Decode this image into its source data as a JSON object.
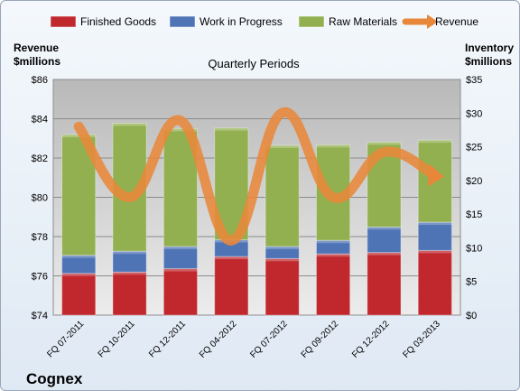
{
  "company": "Cognex",
  "chart_data": {
    "type": "bar",
    "subtitle": "Quarterly Periods",
    "left_axis_label": [
      "Revenue",
      "$millions"
    ],
    "right_axis_label": [
      "Inventory",
      "$millions"
    ],
    "categories": [
      "FQ 07-2011",
      "FQ 10-2011",
      "FQ 12-2011",
      "FQ 04-2012",
      "FQ 07-2012",
      "FQ 09-2012",
      "FQ 12-2012",
      "FQ 03-2013"
    ],
    "left_ylim": [
      74,
      86
    ],
    "left_ticks": [
      "$74",
      "$76",
      "$78",
      "$80",
      "$82",
      "$84",
      "$86"
    ],
    "right_ylim": [
      0,
      35
    ],
    "right_ticks": [
      "$0",
      "$5",
      "$10",
      "$15",
      "$20",
      "$25",
      "$30",
      "$35"
    ],
    "stacked": true,
    "series": [
      {
        "name": "Finished Goods",
        "axis": "right",
        "color": "#c0282e",
        "values": [
          6.2,
          6.4,
          6.9,
          8.7,
          8.4,
          9.1,
          9.3,
          9.6
        ]
      },
      {
        "name": "Work in Progress",
        "axis": "right",
        "color": "#4f74b6",
        "values": [
          2.7,
          3.1,
          3.3,
          2.5,
          1.8,
          2.0,
          3.8,
          4.2
        ]
      },
      {
        "name": "Raw Materials",
        "axis": "right",
        "color": "#92b050",
        "values": [
          17.9,
          19.0,
          17.5,
          16.6,
          15.0,
          14.2,
          12.6,
          12.2
        ]
      },
      {
        "name": "Revenue",
        "axis": "left",
        "type": "line",
        "color": "#e8873a",
        "values": [
          83.6,
          80.0,
          83.9,
          77.8,
          84.3,
          80.0,
          82.3,
          81.1
        ]
      }
    ],
    "legend_position": "top",
    "grid": true
  }
}
